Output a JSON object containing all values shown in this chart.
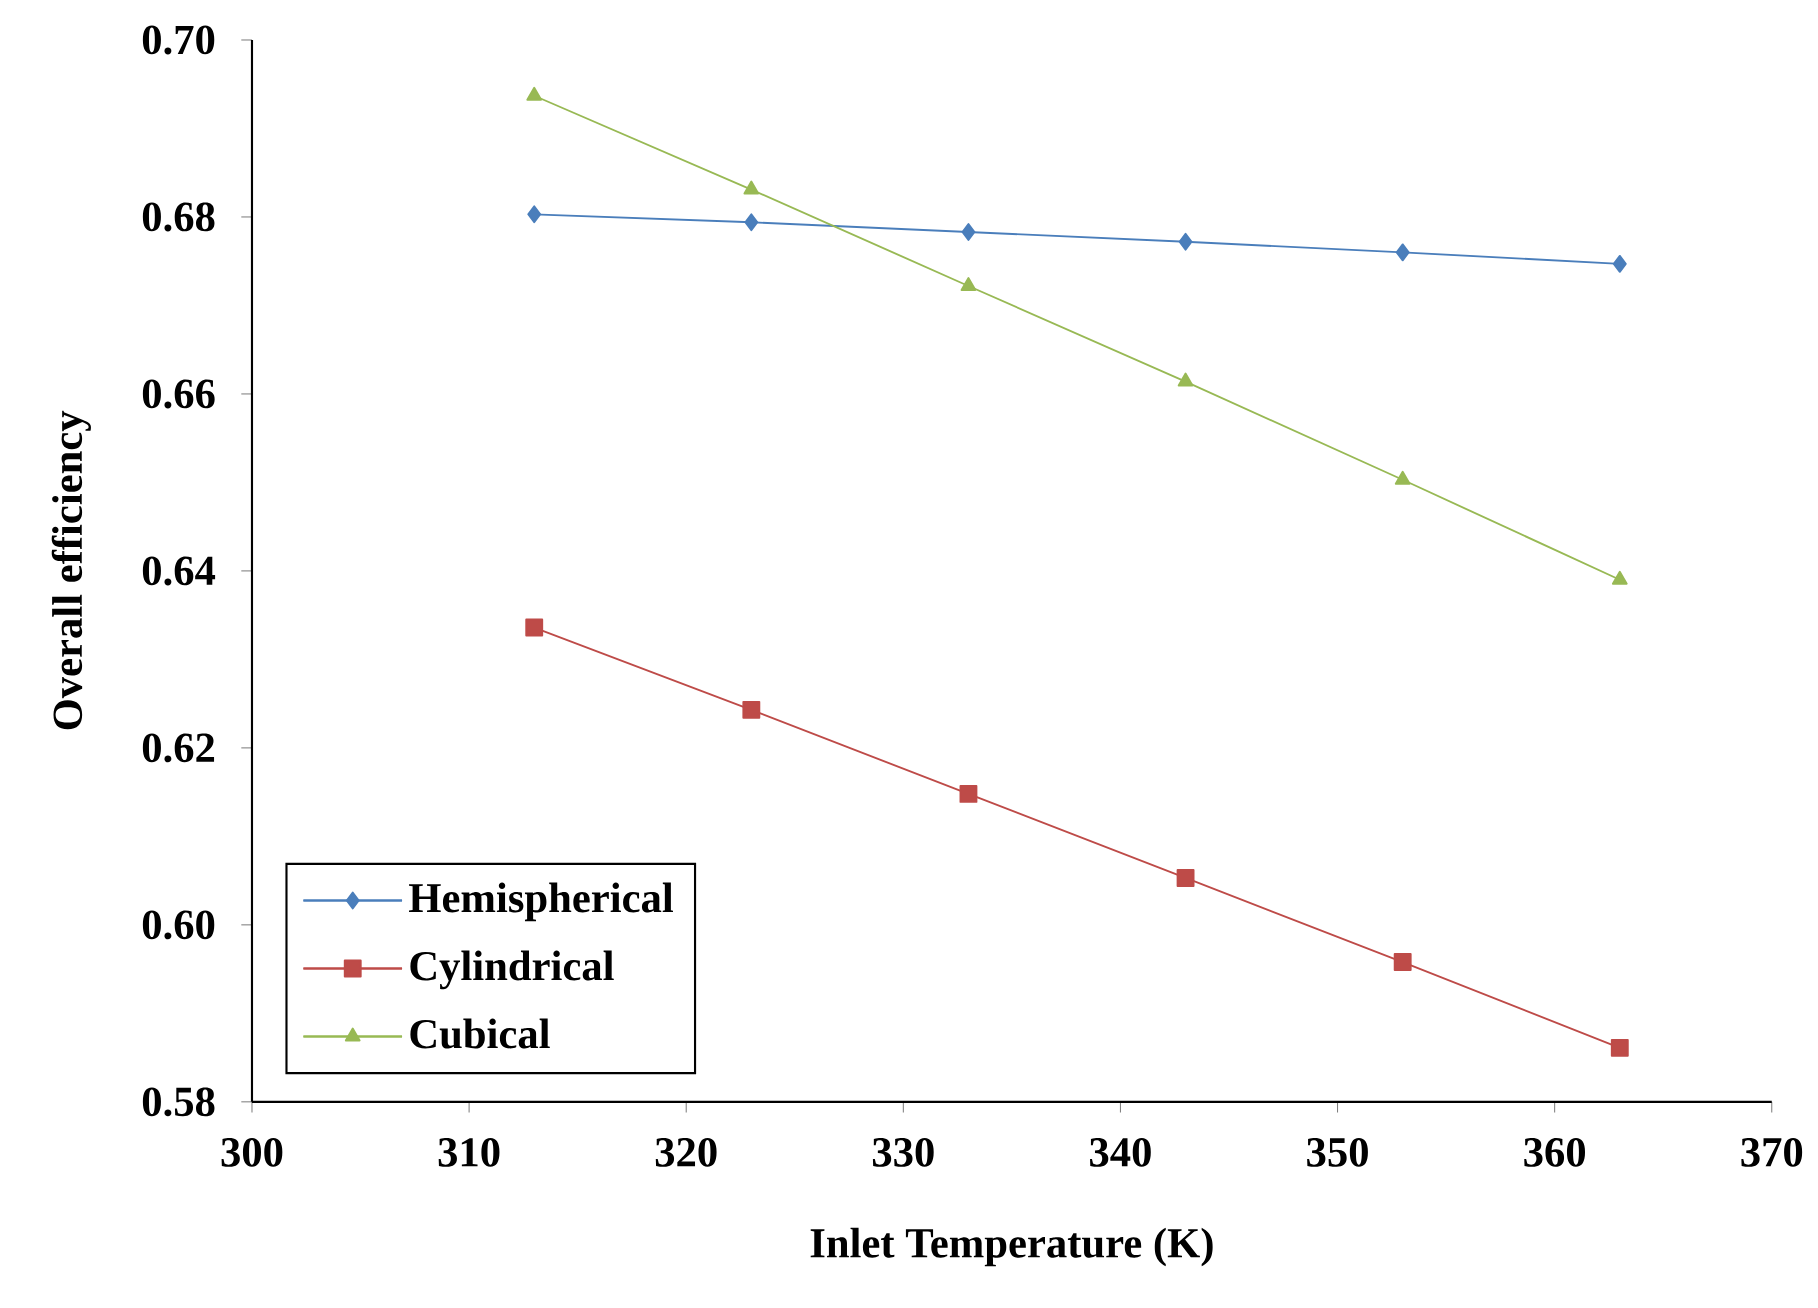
{
  "chart_data": {
    "type": "line",
    "xlabel": "Inlet Temperature (K)",
    "ylabel": "Overall efficiency",
    "x": [
      313,
      323,
      333,
      343,
      353,
      363
    ],
    "series": [
      {
        "name": "Hemispherical",
        "color": "#4a7ebb",
        "marker": "diamond",
        "values": [
          0.6803,
          0.6794,
          0.6783,
          0.6772,
          0.676,
          0.6747
        ]
      },
      {
        "name": "Cylindrical",
        "color": "#be4b48",
        "marker": "square",
        "values": [
          0.6336,
          0.6243,
          0.6148,
          0.6053,
          0.5958,
          0.5861
        ]
      },
      {
        "name": "Cubical",
        "color": "#98b954",
        "marker": "triangle",
        "values": [
          0.6937,
          0.6831,
          0.6722,
          0.6614,
          0.6503,
          0.639
        ]
      }
    ],
    "xlim": [
      300,
      370
    ],
    "xticks": [
      300,
      310,
      320,
      330,
      340,
      350,
      360,
      370
    ],
    "ylim": [
      0.58,
      0.7
    ],
    "yticks": [
      {
        "value": 0.58,
        "label": "0.58"
      },
      {
        "value": 0.6,
        "label": "0.60"
      },
      {
        "value": 0.62,
        "label": "0.62"
      },
      {
        "value": 0.64,
        "label": "0.64"
      },
      {
        "value": 0.66,
        "label": "0.66"
      },
      {
        "value": 0.68,
        "label": "0.68"
      },
      {
        "value": 0.7,
        "label": "0.70"
      }
    ],
    "legend": "bottom left",
    "grid": false,
    "line_style": "solid"
  }
}
